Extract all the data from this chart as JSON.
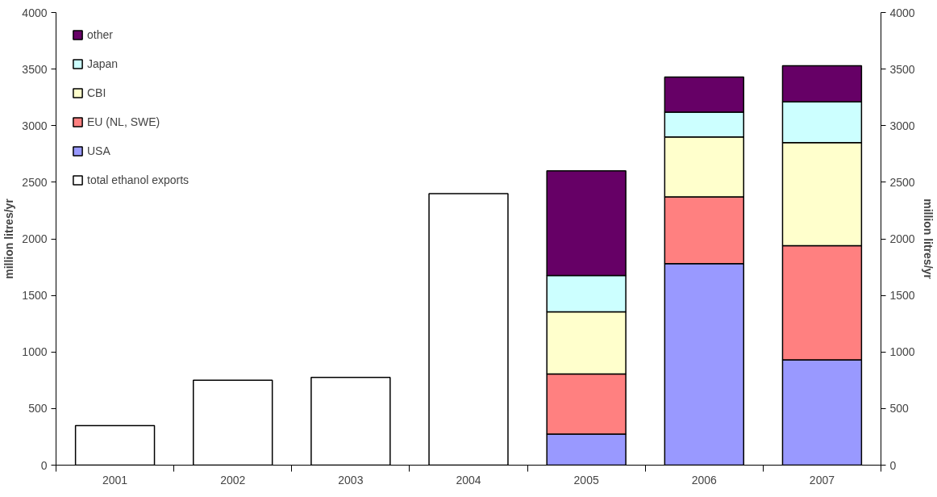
{
  "chart_data": {
    "type": "bar",
    "stacked": true,
    "categories": [
      "2001",
      "2002",
      "2003",
      "2004",
      "2005",
      "2006",
      "2007"
    ],
    "series": [
      {
        "name": "total ethanol exports",
        "color": "#ffffff",
        "values": [
          350,
          750,
          775,
          2400,
          null,
          null,
          null
        ]
      },
      {
        "name": "USA",
        "color": "#9999ff",
        "values": [
          null,
          null,
          null,
          null,
          275,
          1780,
          930
        ]
      },
      {
        "name": "EU (NL, SWE)",
        "color": "#ff8080",
        "values": [
          null,
          null,
          null,
          null,
          530,
          590,
          1010
        ]
      },
      {
        "name": "CBI",
        "color": "#ffffcc",
        "values": [
          null,
          null,
          null,
          null,
          550,
          530,
          910
        ]
      },
      {
        "name": "Japan",
        "color": "#ccffff",
        "values": [
          null,
          null,
          null,
          null,
          320,
          220,
          360
        ]
      },
      {
        "name": "other",
        "color": "#660066",
        "values": [
          null,
          null,
          null,
          null,
          925,
          310,
          320
        ]
      }
    ],
    "ylabel": "million litres/yr",
    "y2label": "million litres/yr",
    "ylim": [
      0,
      4000
    ],
    "yticks": [
      0,
      500,
      1000,
      1500,
      2000,
      2500,
      3000,
      3500,
      4000
    ],
    "y2lim": [
      0,
      4000
    ],
    "y2ticks": [
      0,
      500,
      1000,
      1500,
      2000,
      2500,
      3000,
      3500,
      4000
    ],
    "grid": false,
    "legend": "top left"
  }
}
